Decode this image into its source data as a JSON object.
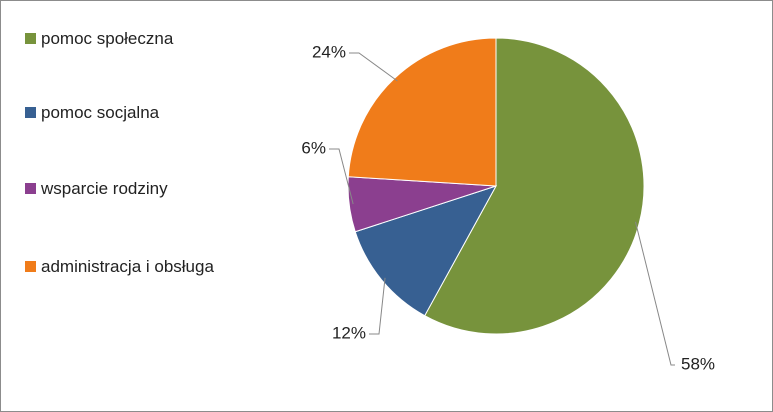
{
  "chart_data": {
    "type": "pie",
    "categories": [
      "pomoc społeczna",
      "pomoc socjalna",
      "wsparcie rodziny",
      "administracja i obsługa"
    ],
    "values": [
      58,
      12,
      6,
      24
    ],
    "value_labels": [
      "58%",
      "12%",
      "6%",
      "24%"
    ],
    "colors": [
      "#77933c",
      "#376092",
      "#8b3f8f",
      "#f07c1a"
    ],
    "legend": "left"
  }
}
